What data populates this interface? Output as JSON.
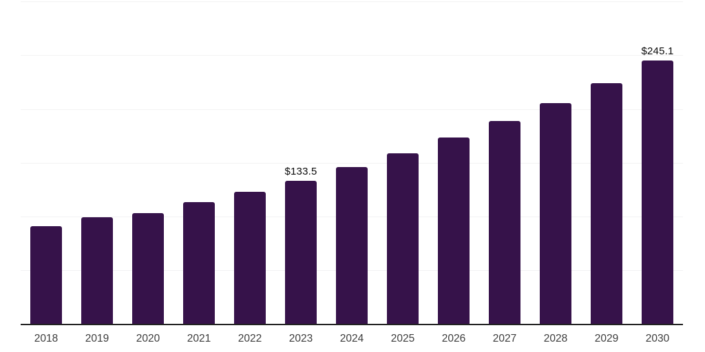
{
  "chart_data": {
    "type": "bar",
    "title": "",
    "xlabel": "",
    "ylabel": "",
    "categories": [
      "2018",
      "2019",
      "2020",
      "2021",
      "2022",
      "2023",
      "2024",
      "2025",
      "2026",
      "2027",
      "2028",
      "2029",
      "2030"
    ],
    "values": [
      91.2,
      99.5,
      103.2,
      113.5,
      123.2,
      133.5,
      145.8,
      158.9,
      173.4,
      188.5,
      205.7,
      224.2,
      245.1
    ],
    "data_labels": {
      "2023": "$133.5",
      "2030": "$245.1"
    },
    "ylim": [
      0,
      300
    ],
    "gridline_step": 50,
    "grid": true,
    "legend_position": "none",
    "colors": {
      "bar": "#36124a",
      "axis": "#222222",
      "gridline": "#f2f2f3",
      "tick_label": "#3d3d3d",
      "data_label": "#0a0a0a",
      "background": "#ffffff"
    }
  }
}
